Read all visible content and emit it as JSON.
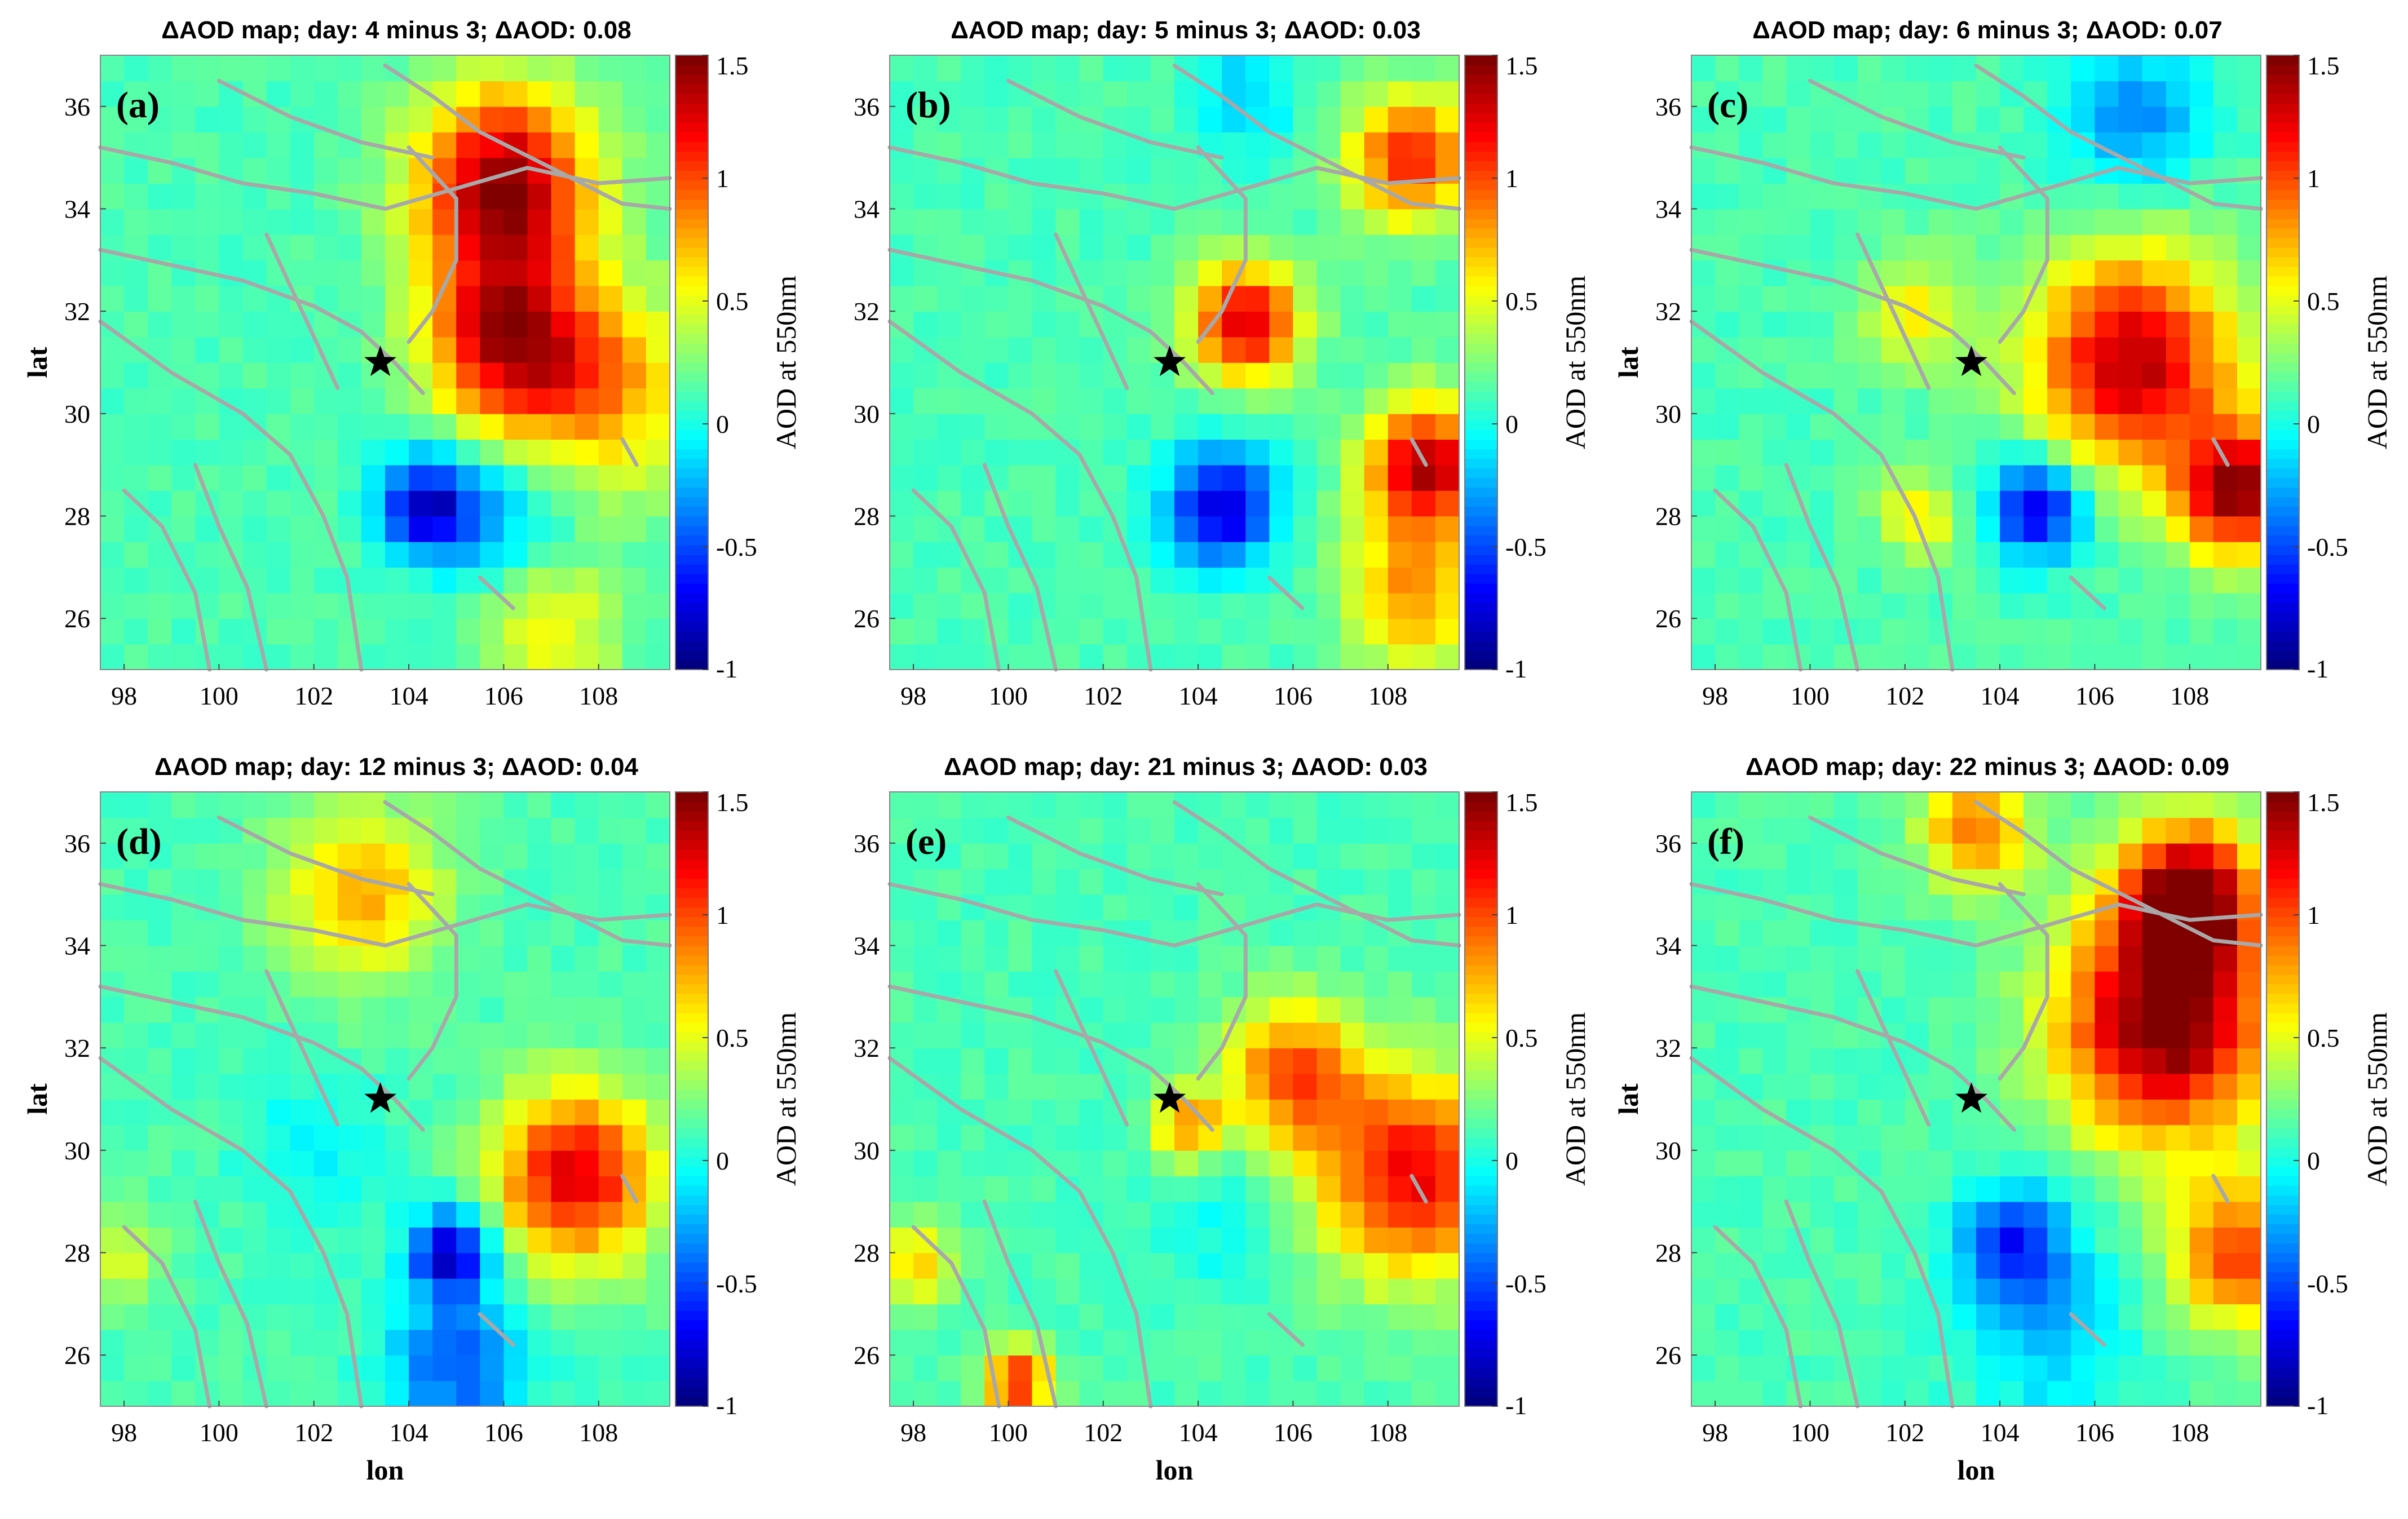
{
  "chart_data": [
    {
      "type": "heatmap",
      "panel_label": "(a)",
      "title": "ΔAOD map; day: 4 minus 3; ΔAOD: 0.08",
      "xlabel": "",
      "ylabel": "lat",
      "colorbar_label": "AOD at 550nm",
      "clim": [
        -1,
        1.5
      ],
      "xlim": [
        97.5,
        109.5
      ],
      "ylim": [
        25,
        37
      ],
      "xticks": [
        "98",
        "100",
        "102",
        "104",
        "106",
        "108"
      ],
      "yticks": [
        "26",
        "28",
        "30",
        "32",
        "34",
        "36"
      ],
      "cbticks": [
        "-1",
        "-0.5",
        "0",
        "0.5",
        "1",
        "1.5"
      ],
      "epicenter": {
        "lon": 103.4,
        "lat": 31.0
      },
      "hotspots": [
        {
          "lon": 106.0,
          "lat": 34.5,
          "value": 1.35,
          "sigma": 1.3
        },
        {
          "lon": 106.0,
          "lat": 31.5,
          "value": 1.1,
          "sigma": 1.2
        },
        {
          "lon": 108.0,
          "lat": 30.5,
          "value": 0.7,
          "sigma": 1.4
        },
        {
          "lon": 104.4,
          "lat": 28.2,
          "value": -0.95,
          "sigma": 0.7
        },
        {
          "lon": 106.0,
          "lat": 28.0,
          "value": -0.35,
          "sigma": 1.0
        },
        {
          "lon": 107.0,
          "lat": 25.8,
          "value": 0.45,
          "sigma": 1.0
        }
      ]
    },
    {
      "type": "heatmap",
      "panel_label": "(b)",
      "title": "ΔAOD map; day: 5 minus 3; ΔAOD: 0.03",
      "xlabel": "",
      "ylabel": "",
      "colorbar_label": "AOD at 550nm",
      "clim": [
        -1,
        1.5
      ],
      "xlim": [
        97.5,
        109.5
      ],
      "ylim": [
        25,
        37
      ],
      "xticks": [
        "98",
        "100",
        "102",
        "104",
        "106",
        "108"
      ],
      "yticks": [
        "26",
        "28",
        "30",
        "32",
        "34",
        "36"
      ],
      "cbticks": [
        "-1",
        "-0.5",
        "0",
        "0.5",
        "1",
        "1.5"
      ],
      "epicenter": {
        "lon": 103.4,
        "lat": 31.0
      },
      "hotspots": [
        {
          "lon": 105.0,
          "lat": 31.8,
          "value": 1.2,
          "sigma": 0.8
        },
        {
          "lon": 108.8,
          "lat": 29.0,
          "value": 1.25,
          "sigma": 0.9
        },
        {
          "lon": 108.5,
          "lat": 35.0,
          "value": 1.0,
          "sigma": 0.9
        },
        {
          "lon": 108.5,
          "lat": 26.5,
          "value": 0.7,
          "sigma": 1.0
        },
        {
          "lon": 104.5,
          "lat": 28.2,
          "value": -0.95,
          "sigma": 0.8
        },
        {
          "lon": 105.0,
          "lat": 36.2,
          "value": -0.3,
          "sigma": 0.8
        }
      ]
    },
    {
      "type": "heatmap",
      "panel_label": "(c)",
      "title": "ΔAOD map; day: 6 minus 3; ΔAOD: 0.07",
      "xlabel": "",
      "ylabel": "lat",
      "colorbar_label": "AOD at 550nm",
      "clim": [
        -1,
        1.5
      ],
      "xlim": [
        97.5,
        109.5
      ],
      "ylim": [
        25,
        37
      ],
      "xticks": [
        "98",
        "100",
        "102",
        "104",
        "106",
        "108"
      ],
      "yticks": [
        "26",
        "28",
        "30",
        "32",
        "34",
        "36"
      ],
      "cbticks": [
        "-1",
        "-0.5",
        "0",
        "0.5",
        "1",
        "1.5"
      ],
      "epicenter": {
        "lon": 103.4,
        "lat": 31.0
      },
      "hotspots": [
        {
          "lon": 106.8,
          "lat": 31.0,
          "value": 1.25,
          "sigma": 1.5
        },
        {
          "lon": 109.0,
          "lat": 28.5,
          "value": 1.3,
          "sigma": 0.9
        },
        {
          "lon": 104.8,
          "lat": 28.2,
          "value": -0.95,
          "sigma": 0.7
        },
        {
          "lon": 106.8,
          "lat": 35.8,
          "value": -0.5,
          "sigma": 1.0
        },
        {
          "lon": 102.2,
          "lat": 32.0,
          "value": 0.45,
          "sigma": 0.8
        },
        {
          "lon": 102.3,
          "lat": 28.0,
          "value": 0.5,
          "sigma": 0.6
        }
      ]
    },
    {
      "type": "heatmap",
      "panel_label": "(d)",
      "title": "ΔAOD map; day: 12 minus 3; ΔAOD: 0.04",
      "xlabel": "lon",
      "ylabel": "lat",
      "colorbar_label": "AOD at 550nm",
      "clim": [
        -1,
        1.5
      ],
      "xlim": [
        97.5,
        109.5
      ],
      "ylim": [
        25,
        37
      ],
      "xticks": [
        "98",
        "100",
        "102",
        "104",
        "106",
        "108"
      ],
      "yticks": [
        "26",
        "28",
        "30",
        "32",
        "34",
        "36"
      ],
      "cbticks": [
        "-1",
        "-0.5",
        "0",
        "0.5",
        "1",
        "1.5"
      ],
      "epicenter": {
        "lon": 103.4,
        "lat": 31.0
      },
      "hotspots": [
        {
          "lon": 107.5,
          "lat": 29.5,
          "value": 1.15,
          "sigma": 1.2
        },
        {
          "lon": 103.0,
          "lat": 35.0,
          "value": 0.65,
          "sigma": 1.2
        },
        {
          "lon": 104.9,
          "lat": 28.0,
          "value": -1.0,
          "sigma": 0.6
        },
        {
          "lon": 105.0,
          "lat": 25.8,
          "value": -0.6,
          "sigma": 1.0
        },
        {
          "lon": 98.0,
          "lat": 28.0,
          "value": 0.35,
          "sigma": 0.6
        },
        {
          "lon": 102.0,
          "lat": 30.0,
          "value": -0.2,
          "sigma": 1.0
        }
      ]
    },
    {
      "type": "heatmap",
      "panel_label": "(e)",
      "title": "ΔAOD map; day: 21 minus 3; ΔAOD: 0.03",
      "xlabel": "lon",
      "ylabel": "",
      "colorbar_label": "AOD at 550nm",
      "clim": [
        -1,
        1.5
      ],
      "xlim": [
        97.5,
        109.5
      ],
      "ylim": [
        25,
        37
      ],
      "xticks": [
        "98",
        "100",
        "102",
        "104",
        "106",
        "108"
      ],
      "yticks": [
        "26",
        "28",
        "30",
        "32",
        "34",
        "36"
      ],
      "cbticks": [
        "-1",
        "-0.5",
        "0",
        "0.5",
        "1",
        "1.5"
      ],
      "epicenter": {
        "lon": 103.4,
        "lat": 31.0
      },
      "hotspots": [
        {
          "lon": 108.5,
          "lat": 29.5,
          "value": 1.1,
          "sigma": 1.4
        },
        {
          "lon": 106.0,
          "lat": 31.5,
          "value": 0.85,
          "sigma": 1.0
        },
        {
          "lon": 103.8,
          "lat": 30.5,
          "value": 0.75,
          "sigma": 0.5
        },
        {
          "lon": 100.2,
          "lat": 25.5,
          "value": 1.0,
          "sigma": 0.5
        },
        {
          "lon": 98.0,
          "lat": 27.8,
          "value": 0.55,
          "sigma": 0.6
        },
        {
          "lon": 104.5,
          "lat": 28.5,
          "value": -0.15,
          "sigma": 1.0
        }
      ]
    },
    {
      "type": "heatmap",
      "panel_label": "(f)",
      "title": "ΔAOD map; day: 22 minus 3; ΔAOD: 0.09",
      "xlabel": "lon",
      "ylabel": "lat",
      "colorbar_label": "AOD at 550nm",
      "clim": [
        -1,
        1.5
      ],
      "xlim": [
        97.5,
        109.5
      ],
      "ylim": [
        25,
        37
      ],
      "xticks": [
        "98",
        "100",
        "102",
        "104",
        "106",
        "108"
      ],
      "yticks": [
        "26",
        "28",
        "30",
        "32",
        "34",
        "36"
      ],
      "cbticks": [
        "-1",
        "-0.5",
        "0",
        "0.5",
        "1",
        "1.5"
      ],
      "epicenter": {
        "lon": 103.4,
        "lat": 31.0
      },
      "hotspots": [
        {
          "lon": 107.5,
          "lat": 32.5,
          "value": 1.45,
          "sigma": 1.6
        },
        {
          "lon": 108.0,
          "lat": 35.0,
          "value": 1.3,
          "sigma": 1.0
        },
        {
          "lon": 109.0,
          "lat": 28.0,
          "value": 0.9,
          "sigma": 1.0
        },
        {
          "lon": 104.3,
          "lat": 28.2,
          "value": -0.7,
          "sigma": 0.8
        },
        {
          "lon": 105.0,
          "lat": 26.5,
          "value": -0.35,
          "sigma": 1.2
        },
        {
          "lon": 103.5,
          "lat": 36.3,
          "value": 0.8,
          "sigma": 0.8
        }
      ]
    }
  ]
}
